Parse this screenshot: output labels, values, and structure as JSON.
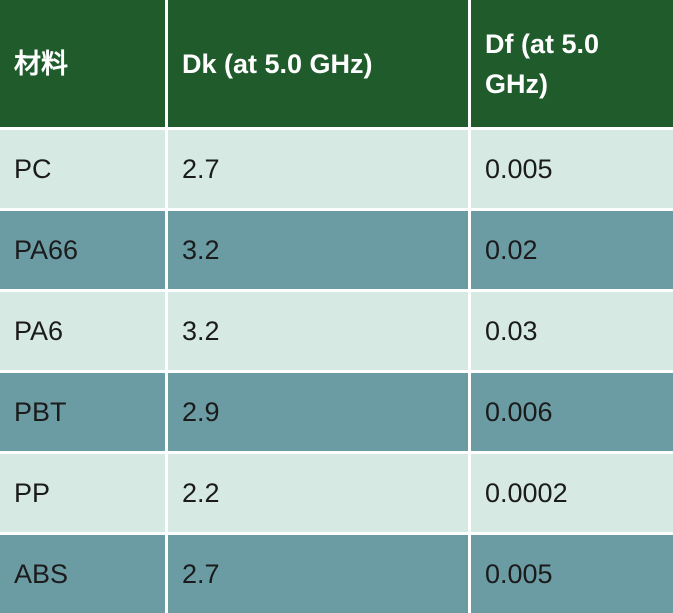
{
  "table": {
    "header": [
      "材料",
      "Dk (at 5.0 GHz)",
      "Df (at 5.0 GHz)"
    ],
    "rows": [
      [
        "PC",
        "2.7",
        "0.005"
      ],
      [
        "PA66",
        "3.2",
        "0.02"
      ],
      [
        "PA6",
        "3.2",
        "0.03"
      ],
      [
        "PBT",
        "2.9",
        "0.006"
      ],
      [
        "PP",
        "2.2",
        "0.0002"
      ],
      [
        "ABS",
        "2.7",
        "0.005"
      ]
    ]
  }
}
